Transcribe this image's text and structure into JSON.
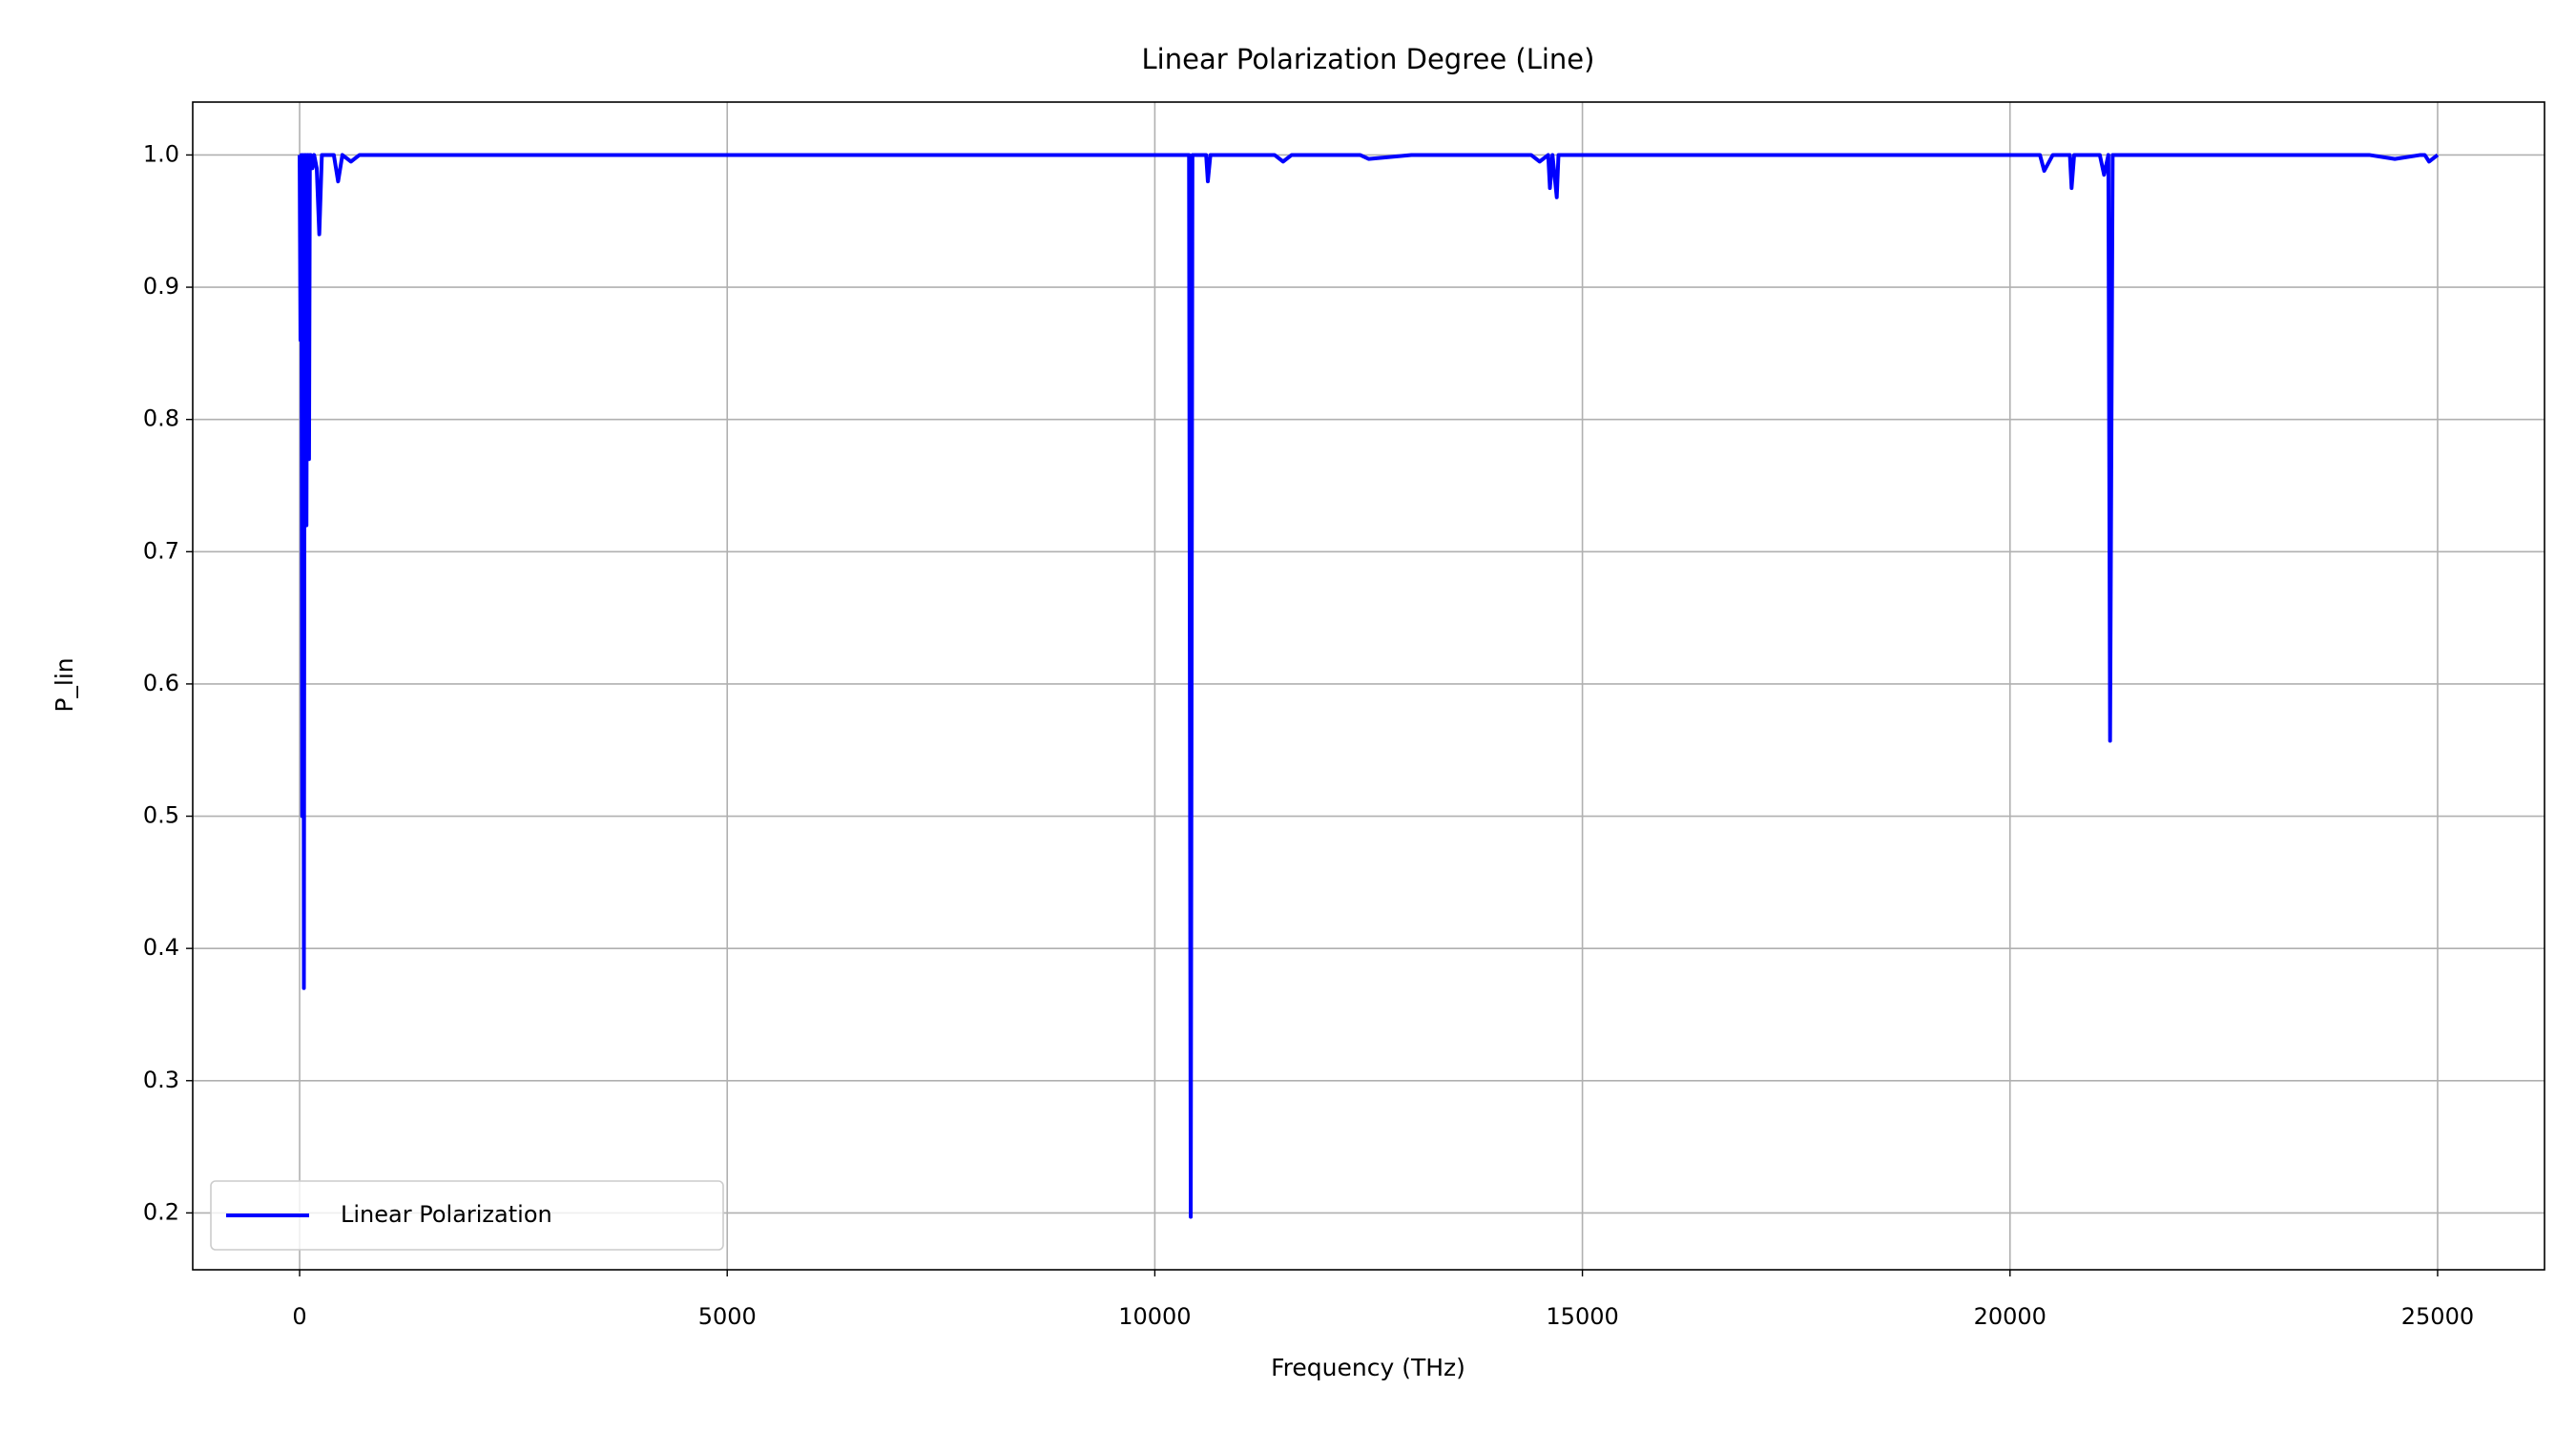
{
  "chart_data": {
    "type": "line",
    "title": "Linear Polarization Degree (Line)",
    "x_label": "Frequency (THz)",
    "y_label": "P_lin",
    "x": [
      0,
      10,
      20,
      30,
      40,
      50,
      60,
      70,
      80,
      90,
      100,
      110,
      120,
      130,
      150,
      170,
      200,
      230,
      260,
      300,
      350,
      400,
      450,
      500,
      600,
      700,
      800,
      1000,
      2000,
      4000,
      6000,
      8000,
      10000,
      10350,
      10400,
      10420,
      10440,
      10500,
      10600,
      10620,
      10650,
      10700,
      11000,
      11400,
      11500,
      11600,
      12000,
      12400,
      12500,
      13000,
      14000,
      14400,
      14500,
      14600,
      14620,
      14650,
      14700,
      14720,
      14750,
      15000,
      17000,
      20000,
      20300,
      20350,
      20400,
      20500,
      20700,
      20720,
      20750,
      20800,
      21000,
      21050,
      21100,
      21150,
      21170,
      21200,
      21300,
      22000,
      23000,
      24200,
      24500,
      24800,
      24850,
      24900,
      25000
    ],
    "series": [
      {
        "name": "Linear Polarization",
        "color": "#0000ff",
        "values": [
          1.0,
          0.86,
          1.0,
          0.5,
          1.0,
          0.37,
          1.0,
          1.0,
          0.72,
          1.0,
          1.0,
          0.77,
          1.0,
          1.0,
          0.99,
          1.0,
          0.99,
          0.94,
          1.0,
          1.0,
          1.0,
          1.0,
          0.98,
          1.0,
          0.995,
          1.0,
          1.0,
          1.0,
          1.0,
          1.0,
          1.0,
          1.0,
          1.0,
          1.0,
          1.0,
          0.197,
          1.0,
          1.0,
          1.0,
          0.98,
          1.0,
          1.0,
          1.0,
          1.0,
          0.995,
          1.0,
          1.0,
          1.0,
          0.997,
          1.0,
          1.0,
          1.0,
          0.995,
          1.0,
          0.975,
          1.0,
          0.968,
          1.0,
          1.0,
          1.0,
          1.0,
          1.0,
          1.0,
          1.0,
          0.988,
          1.0,
          1.0,
          0.975,
          1.0,
          1.0,
          1.0,
          1.0,
          0.985,
          1.0,
          0.557,
          1.0,
          1.0,
          1.0,
          1.0,
          1.0,
          0.997,
          1.0,
          1.0,
          0.995,
          1.0
        ]
      }
    ],
    "xlim": [
      -1250,
      26250
    ],
    "ylim": [
      0.157,
      1.04
    ],
    "xticks": [
      0,
      5000,
      10000,
      15000,
      20000,
      25000
    ],
    "yticks": [
      0.2,
      0.3,
      0.4,
      0.5,
      0.6,
      0.7,
      0.8,
      0.9,
      {
        "value": 1,
        "label": "1.0"
      }
    ],
    "grid": true,
    "legend": "lower left"
  }
}
